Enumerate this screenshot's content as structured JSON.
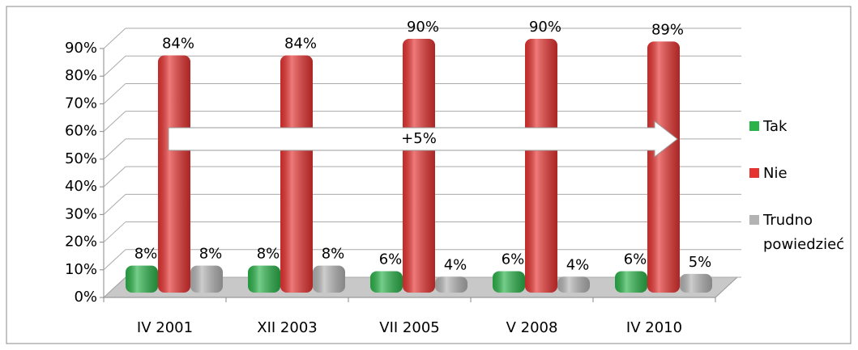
{
  "chart_data": {
    "type": "bar3d",
    "categories": [
      "IV 2001",
      "XII 2003",
      "VII 2005",
      "V 2008",
      "IV 2010"
    ],
    "series": [
      {
        "name": "Tak",
        "color": "#2bb34a",
        "values": [
          8,
          8,
          6,
          6,
          6
        ],
        "value_labels": [
          "8%",
          "8%",
          "6%",
          "6%",
          "6%"
        ]
      },
      {
        "name": "Nie",
        "color": "#e53331",
        "values": [
          84,
          84,
          90,
          90,
          89
        ],
        "value_labels": [
          "84%",
          "84%",
          "90%",
          "90%",
          "89%"
        ]
      },
      {
        "name": "Trudno powiedzieć",
        "color": "#b3b3b3",
        "values": [
          8,
          8,
          4,
          4,
          5
        ],
        "value_labels": [
          "8%",
          "8%",
          "4%",
          "4%",
          "5%"
        ]
      }
    ],
    "ylim": [
      0,
      90
    ],
    "yticks": [
      {
        "value": 0,
        "label": "0%"
      },
      {
        "value": 10,
        "label": "10%"
      },
      {
        "value": 20,
        "label": "20%"
      },
      {
        "value": 30,
        "label": "30%"
      },
      {
        "value": 40,
        "label": "40%"
      },
      {
        "value": 50,
        "label": "50%"
      },
      {
        "value": 60,
        "label": "60%"
      },
      {
        "value": 70,
        "label": "70%"
      },
      {
        "value": 80,
        "label": "80%"
      },
      {
        "value": 90,
        "label": "90%"
      }
    ],
    "grid": true,
    "legend": "right",
    "annotation": "+5%"
  }
}
